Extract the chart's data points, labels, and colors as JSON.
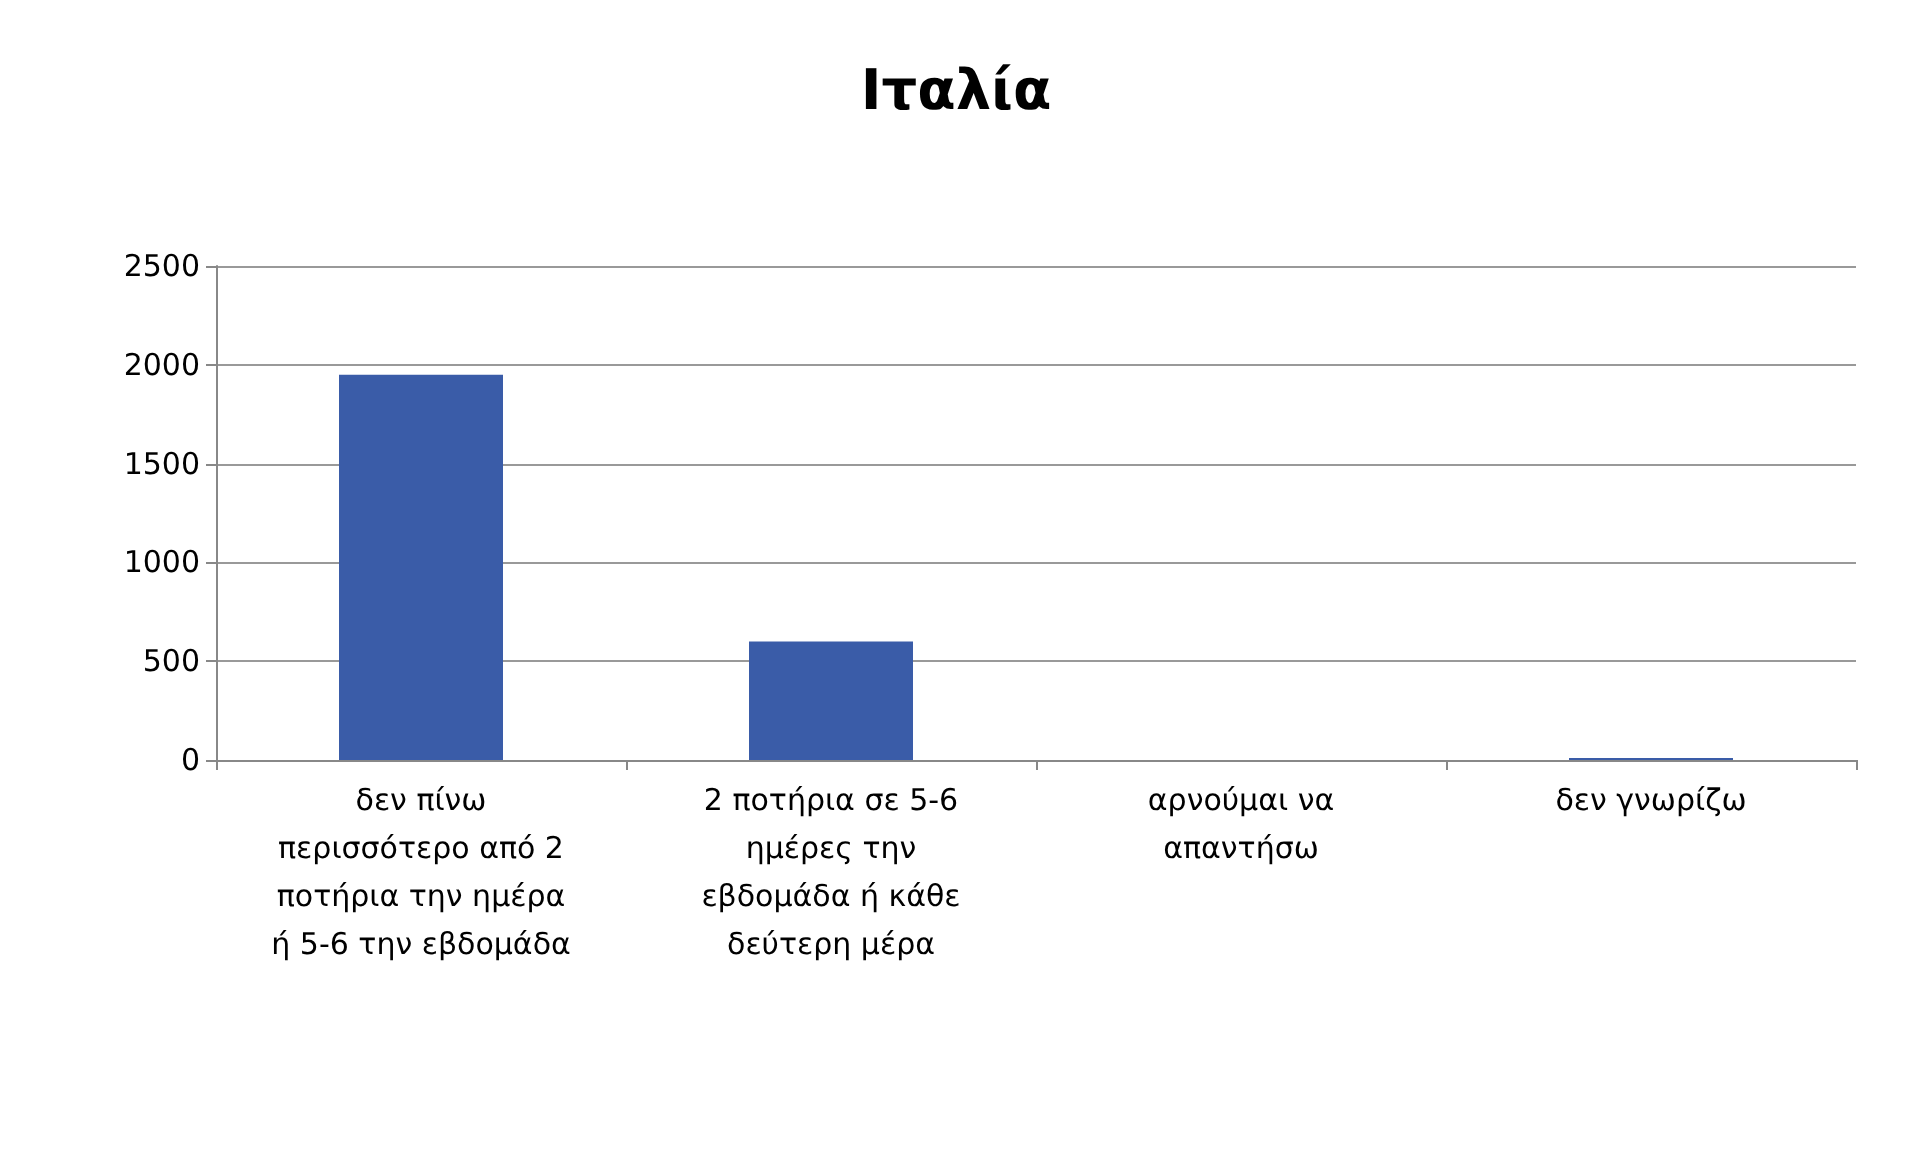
{
  "chart_data": {
    "type": "bar",
    "title": "Ιταλία",
    "categories": [
      "δεν πίνω περισσότερο από 2 ποτήρια την ημέρα ή 5-6 την εβδομάδα",
      "2 ποτήρια σε 5-6 ημέρες την εβδομάδα ή κάθε δεύτερη μέρα",
      "αρνούμαι να απαντήσω",
      "δεν γνωρίζω"
    ],
    "values": [
      1950,
      600,
      0,
      10
    ],
    "color": "#3a5ca8",
    "ylim": [
      0,
      2500
    ],
    "yticks": [
      0,
      500,
      1000,
      1500,
      2000,
      2500
    ],
    "grid": true
  }
}
